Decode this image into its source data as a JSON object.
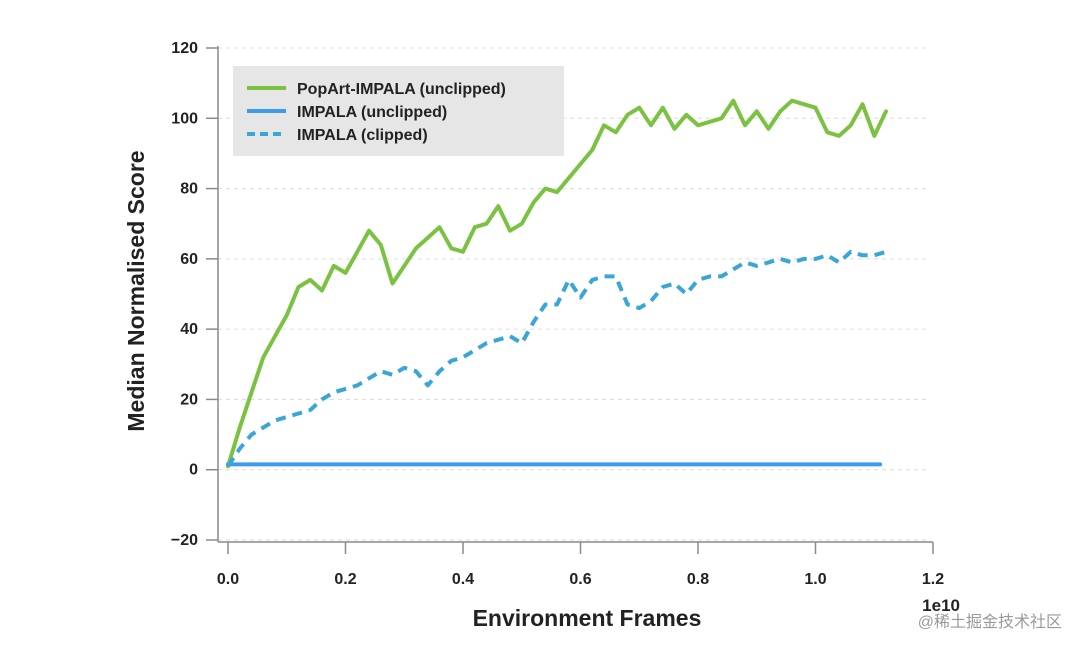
{
  "chart_data": {
    "type": "line",
    "xlabel": "Environment Frames",
    "ylabel": "Median Normalised Score",
    "x_exponent": "1e10",
    "xlim": [
      0.0,
      1.2
    ],
    "ylim": [
      -20,
      120
    ],
    "x_ticks": [
      "0.0",
      "0.2",
      "0.4",
      "0.6",
      "0.8",
      "1.0",
      "1.2"
    ],
    "y_ticks": [
      "120",
      "100",
      "80",
      "60",
      "40",
      "20",
      "0",
      "−20"
    ],
    "grid": "horizontal-dashed",
    "legend_position": "top-left",
    "series": [
      {
        "name": "PopArt-IMPALA (unclipped)",
        "color": "#7cc242",
        "style": "solid",
        "x": [
          0.0,
          0.02,
          0.04,
          0.06,
          0.08,
          0.1,
          0.12,
          0.14,
          0.16,
          0.18,
          0.2,
          0.22,
          0.24,
          0.26,
          0.28,
          0.3,
          0.32,
          0.34,
          0.36,
          0.38,
          0.4,
          0.42,
          0.44,
          0.46,
          0.48,
          0.5,
          0.52,
          0.54,
          0.56,
          0.58,
          0.6,
          0.62,
          0.64,
          0.66,
          0.68,
          0.7,
          0.72,
          0.74,
          0.76,
          0.78,
          0.8,
          0.82,
          0.84,
          0.86,
          0.88,
          0.9,
          0.92,
          0.94,
          0.96,
          0.98,
          1.0,
          1.02,
          1.04,
          1.06,
          1.08,
          1.1,
          1.12
        ],
        "y": [
          1,
          12,
          22,
          32,
          38,
          44,
          52,
          54,
          51,
          58,
          56,
          62,
          68,
          64,
          53,
          58,
          63,
          66,
          69,
          63,
          62,
          69,
          70,
          75,
          68,
          70,
          76,
          80,
          79,
          83,
          87,
          91,
          98,
          96,
          101,
          103,
          98,
          103,
          97,
          101,
          98,
          99,
          100,
          105,
          98,
          102,
          97,
          102,
          105,
          104,
          103,
          96,
          95,
          98,
          104,
          95,
          102
        ]
      },
      {
        "name": "IMPALA (unclipped)",
        "color": "#3d9be9",
        "style": "solid",
        "x": [
          0.0,
          0.2,
          0.4,
          0.6,
          0.8,
          1.0,
          1.11
        ],
        "y": [
          1.5,
          1.5,
          1.5,
          1.5,
          1.5,
          1.5,
          1.5
        ]
      },
      {
        "name": "IMPALA (clipped)",
        "color": "#3aa6d8",
        "style": "dashed",
        "x": [
          0.0,
          0.02,
          0.04,
          0.06,
          0.08,
          0.1,
          0.12,
          0.14,
          0.16,
          0.18,
          0.2,
          0.22,
          0.24,
          0.26,
          0.28,
          0.3,
          0.32,
          0.34,
          0.36,
          0.38,
          0.4,
          0.42,
          0.44,
          0.46,
          0.48,
          0.5,
          0.52,
          0.54,
          0.56,
          0.58,
          0.6,
          0.62,
          0.64,
          0.66,
          0.68,
          0.7,
          0.72,
          0.74,
          0.76,
          0.78,
          0.8,
          0.82,
          0.84,
          0.86,
          0.88,
          0.9,
          0.92,
          0.94,
          0.96,
          0.98,
          1.0,
          1.02,
          1.04,
          1.06,
          1.08,
          1.1,
          1.12
        ],
        "y": [
          1,
          6,
          10,
          12,
          14,
          15,
          16,
          17,
          20,
          22,
          23,
          24,
          26,
          28,
          27,
          29,
          28,
          24,
          28,
          31,
          32,
          34,
          36,
          37,
          38,
          36,
          42,
          47,
          47,
          54,
          49,
          54,
          55,
          55,
          47,
          46,
          48,
          52,
          53,
          50,
          54,
          55,
          55,
          57,
          59,
          58,
          59,
          60,
          59,
          60,
          60,
          61,
          59,
          62,
          61,
          61,
          62
        ]
      }
    ]
  },
  "watermark": "@稀土掘金技术社区"
}
